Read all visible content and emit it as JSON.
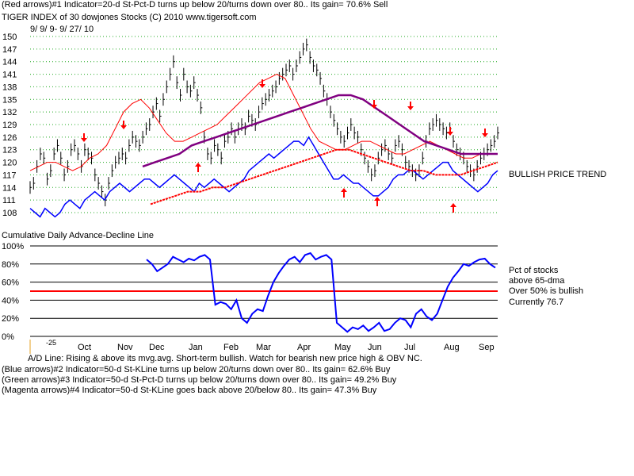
{
  "header": {
    "line1": "(Red arrows)#1 Indicator=20-d St-Pct-D turns up below 20/turns down over 80..  Its gain= 70.6% Sell",
    "line2": "TIGER INDEX of  30 dowjones Stocks  (C) 2010  www.tigersoft.com",
    "date_range": "9/ 9/ 9-  9/ 27/ 10"
  },
  "annotations": {
    "trend": "BULLISH PRICE TREND",
    "ad_title": "Cumulative Daily Advance-Decline Line",
    "pct_line1": "Pct of stocks",
    "pct_line2": "above 65-dma",
    "pct_line3": "Over 50% is bullish",
    "pct_line4": "Currently  76.7",
    "stub_label": "-25",
    "ad_note": "A/D Line: Rising & above its mvg.avg. Short-term bullish. Watch for bearish new price high & OBV NC."
  },
  "footer": {
    "blue": "(Blue arrows)#2 Indicator=50-d St-KLine turns up below 20/turns down over 80..  Its gain= 62.6% Buy",
    "green": "(Green arrows)#3 Indicator=50-d St-Pct-D turns up below 20/turns down over 80..  Its gain= 49.2% Buy",
    "magenta": "(Magenta arrows)#4 Indicator=50-d St-KLine goes back above 20/below 80..  Its gain= 47.3% Buy"
  },
  "chart_data": [
    {
      "type": "line",
      "title": "TIGER INDEX of 30 dowjones Stocks",
      "y_ticks": [
        108,
        111,
        114,
        117,
        120,
        123,
        126,
        129,
        132,
        135,
        138,
        141,
        144,
        147,
        150
      ],
      "ylim": [
        108,
        150
      ],
      "x_month_labels": [
        "Oct",
        "Nov",
        "Dec",
        "Jan",
        "Feb",
        "Mar",
        "Apr",
        "May",
        "Jun",
        "Jul",
        "Aug",
        "Sep"
      ],
      "grid": "dotted-horizontal",
      "colors": {
        "price": "#000000",
        "ma21": "#ff0000",
        "ma65": "#800080",
        "ad_line": "#0000ff",
        "ad_ma": "#ff0000",
        "sell_arrow": "#ff0000",
        "buy_arrow": "#ff0000",
        "grid": "#22aa22"
      },
      "series": [
        {
          "key": "price",
          "values": [
            114,
            115,
            119,
            122,
            121,
            116,
            118,
            122,
            124,
            121,
            117,
            119,
            123,
            124,
            122,
            119,
            123,
            122,
            121,
            117,
            115,
            113,
            111,
            115,
            118,
            120,
            121,
            122,
            121,
            124,
            126,
            125,
            124,
            126,
            128,
            129,
            132,
            134,
            131,
            135,
            138,
            141,
            144,
            139,
            136,
            141,
            138,
            137,
            139,
            136,
            133,
            126,
            122,
            121,
            124,
            123,
            121,
            125,
            126,
            128,
            126,
            128,
            129,
            128,
            131,
            130,
            129,
            132,
            134,
            135,
            136,
            137,
            138,
            140,
            141,
            142,
            143,
            141,
            143,
            145,
            147,
            148,
            145,
            143,
            142,
            140,
            137,
            135,
            132,
            130,
            128,
            126,
            125,
            127,
            129,
            127,
            126,
            123,
            121,
            119,
            117,
            118,
            121,
            123,
            124,
            122,
            121,
            124,
            125,
            123,
            120,
            119,
            118,
            117,
            118,
            121,
            125,
            128,
            129,
            130,
            129,
            128,
            127,
            128,
            125,
            123,
            122,
            121,
            119,
            118,
            117,
            119,
            121,
            122,
            123,
            124,
            125,
            127
          ],
          "note": "daily high/low bars approximated; midpoint values"
        },
        {
          "key": "ad_line",
          "values": [
            109,
            108,
            107,
            109,
            108,
            107,
            108,
            110,
            111,
            110,
            109,
            111,
            112,
            113,
            112,
            111,
            113,
            114,
            115,
            114,
            113,
            114,
            115,
            116,
            116,
            115,
            114,
            115,
            116,
            117,
            116,
            115,
            114,
            113,
            115,
            114,
            115,
            116,
            115,
            114,
            113,
            114,
            115,
            116,
            118,
            119,
            120,
            121,
            122,
            121,
            122,
            123,
            124,
            125,
            125,
            124,
            126,
            124,
            122,
            120,
            118,
            116,
            116,
            117,
            116,
            115,
            115,
            114,
            113,
            112,
            112,
            113,
            114,
            116,
            117,
            117,
            118,
            118,
            117,
            116,
            117,
            118,
            119,
            120,
            120,
            118,
            117,
            116,
            115,
            114,
            113,
            114,
            115,
            117,
            118
          ]
        },
        {
          "key": "ma21",
          "values": [
            118,
            119,
            120,
            120,
            119,
            118,
            119,
            121,
            122,
            124,
            128,
            132,
            134,
            135,
            133,
            130,
            127,
            125,
            125,
            126,
            127,
            128,
            129,
            131,
            133,
            135,
            137,
            139,
            140,
            141,
            140,
            136,
            132,
            128,
            125,
            124,
            123,
            123,
            124,
            125,
            125,
            124,
            123,
            122,
            122,
            123,
            124,
            125,
            124,
            123,
            122,
            121,
            121,
            122,
            122,
            122
          ]
        },
        {
          "key": "ma65",
          "values": [
            119,
            120,
            121,
            122,
            124,
            125,
            126,
            127,
            128,
            129,
            130,
            131,
            132,
            133,
            134,
            135,
            136,
            136,
            135,
            133,
            131,
            129,
            127,
            125,
            124,
            123,
            122,
            122,
            122,
            122
          ]
        },
        {
          "key": "ad_ma",
          "values": [
            110,
            111,
            112,
            113,
            113,
            114,
            114,
            115,
            116,
            117,
            118,
            119,
            120,
            121,
            122,
            123,
            123,
            122,
            121,
            120,
            119,
            118,
            118,
            117,
            117,
            117,
            118,
            119,
            120
          ]
        }
      ],
      "arrows": {
        "down": [
          "Oct",
          "Nov",
          "Mar",
          "Jun",
          "Jul",
          "Aug",
          "Sep"
        ],
        "up": [
          "Jan",
          "May",
          "Jun",
          "Aug"
        ]
      }
    },
    {
      "type": "line",
      "title": "Pct of stocks above 65-dma",
      "y_ticks": [
        "0%",
        "20%",
        "40%",
        "60%",
        "80%",
        "100%"
      ],
      "ylim": [
        0,
        100
      ],
      "reference_line": 50,
      "colors": {
        "pct": "#0000ff",
        "ref": "#ff0000",
        "grid": "#000000"
      },
      "series": [
        {
          "key": "pct",
          "values": [
            85,
            80,
            72,
            76,
            80,
            88,
            85,
            82,
            86,
            84,
            88,
            90,
            85,
            35,
            38,
            36,
            30,
            40,
            20,
            15,
            25,
            30,
            28,
            45,
            60,
            70,
            78,
            85,
            88,
            82,
            90,
            92,
            85,
            88,
            90,
            85,
            15,
            10,
            5,
            10,
            8,
            12,
            6,
            10,
            15,
            6,
            8,
            15,
            20,
            18,
            10,
            25,
            30,
            22,
            18,
            25,
            40,
            55,
            65,
            72,
            80,
            78,
            82,
            85,
            86,
            80,
            76
          ]
        }
      ],
      "x_month_labels": [
        "Oct",
        "Nov",
        "Dec",
        "Jan",
        "Feb",
        "Mar",
        "Apr",
        "May",
        "Jun",
        "Jul",
        "Aug",
        "Sep"
      ]
    }
  ]
}
